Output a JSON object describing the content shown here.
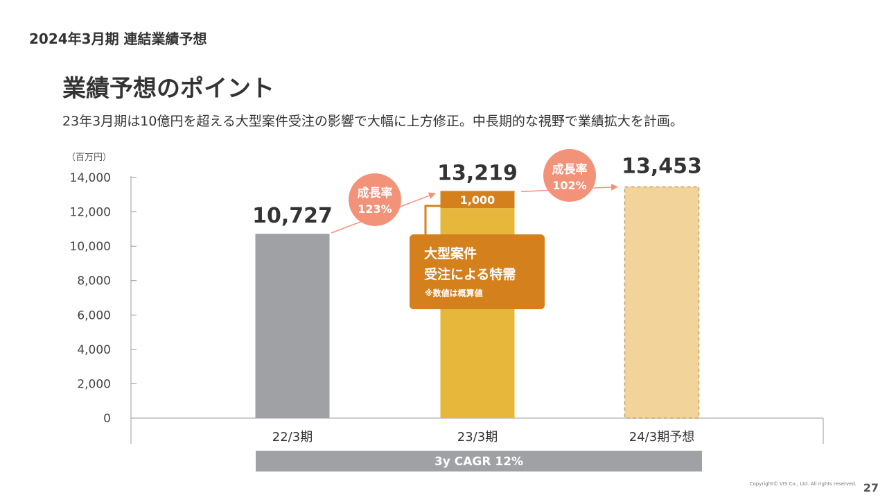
{
  "header": {
    "section_label": "2024年3月期 連結業績予想",
    "title": "業績予想のポイント",
    "subtitle": "23年3月期は10億円を超える大型案件受注の影響で大幅に上方修正。中長期的な視野で業績拡大を計画。"
  },
  "chart_data": {
    "type": "bar",
    "unit_label": "（百万円）",
    "categories": [
      "22/3期",
      "23/3期",
      "24/3期予想"
    ],
    "values": [
      10727,
      13219,
      13453
    ],
    "value_labels": [
      "10,727",
      "13,219",
      "13,453"
    ],
    "special_segment": {
      "category": "23/3期",
      "value": 1000,
      "label": "1,000"
    },
    "ylim": [
      0,
      14000
    ],
    "yticks": [
      0,
      2000,
      4000,
      6000,
      8000,
      10000,
      12000,
      14000
    ],
    "ytick_labels": [
      "0",
      "2,000",
      "4,000",
      "6,000",
      "8,000",
      "10,000",
      "12,000",
      "14,000"
    ],
    "grid": false,
    "colors": {
      "bar_2022": "#a0a1a5",
      "bar_2023": "#e6b73a",
      "bar_2023_top": "#d4801c",
      "bar_2024": "#f2d49a",
      "bar_2024_border": "#c2a16c",
      "growth_bubble": "#f29279",
      "callout": "#d4801c",
      "cagr_bar": "#a0a1a5"
    },
    "growth_badges": [
      {
        "title": "成長率",
        "value": "123%"
      },
      {
        "title": "成長率",
        "value": "102%"
      }
    ],
    "callout": {
      "line1": "大型案件",
      "line2": "受注による特需",
      "note": "※数値は概算値"
    },
    "cagr_label": "3y CAGR 12%"
  },
  "footer": {
    "copyright": "Copyright© VIS Co., Ltd. All rights reserved.",
    "page_number": "27"
  }
}
